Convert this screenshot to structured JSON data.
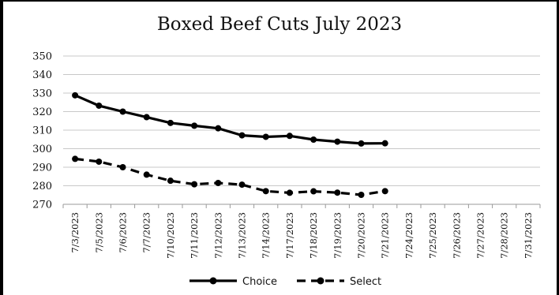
{
  "chart_data": {
    "type": "line",
    "title": "Boxed Beef Cuts July 2023",
    "xlabel": "",
    "ylabel": "",
    "ylim": [
      270,
      350
    ],
    "yticks": [
      270,
      280,
      290,
      300,
      310,
      320,
      330,
      340,
      350
    ],
    "grid": true,
    "legend_position": "bottom",
    "categories": [
      "7/3/2023",
      "7/5/2023",
      "7/6/2023",
      "7/7/2023",
      "7/10/2023",
      "7/11/2023",
      "7/12/2023",
      "7/13/2023",
      "7/14/2023",
      "7/17/2023",
      "7/18/2023",
      "7/19/2023",
      "7/20/2023",
      "7/21/2023",
      "7/24/2023",
      "7/25/2023",
      "7/26/2023",
      "7/27/2023",
      "7/28/2023",
      "7/31/2023"
    ],
    "series": [
      {
        "name": "Choice",
        "style": "solid",
        "color": "#000000",
        "values": [
          328.8,
          323.2,
          320.0,
          317.0,
          313.9,
          312.4,
          311.0,
          307.2,
          306.4,
          306.9,
          304.9,
          303.8,
          302.8,
          302.9,
          null,
          null,
          null,
          null,
          null,
          null
        ]
      },
      {
        "name": "Select",
        "style": "dashed",
        "color": "#000000",
        "values": [
          294.5,
          293.0,
          290.0,
          286.0,
          282.7,
          280.8,
          281.5,
          280.6,
          277.1,
          276.2,
          277.0,
          276.3,
          275.1,
          277.1,
          null,
          null,
          null,
          null,
          null,
          null
        ]
      }
    ]
  }
}
